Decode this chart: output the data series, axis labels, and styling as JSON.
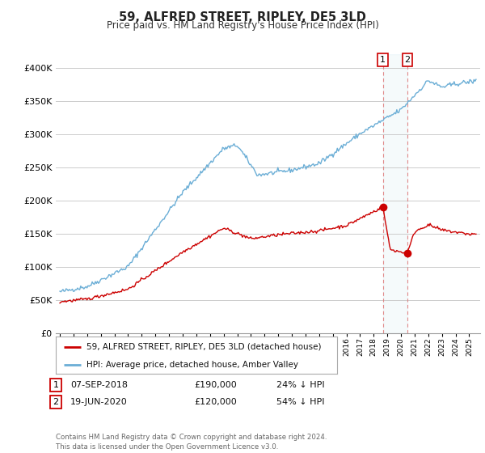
{
  "title": "59, ALFRED STREET, RIPLEY, DE5 3LD",
  "subtitle": "Price paid vs. HM Land Registry's House Price Index (HPI)",
  "footer": "Contains HM Land Registry data © Crown copyright and database right 2024.\nThis data is licensed under the Open Government Licence v3.0.",
  "legend_label_red": "59, ALFRED STREET, RIPLEY, DE5 3LD (detached house)",
  "legend_label_blue": "HPI: Average price, detached house, Amber Valley",
  "table_rows": [
    {
      "num": "1",
      "date": "07-SEP-2018",
      "price": "£190,000",
      "note": "24% ↓ HPI"
    },
    {
      "num": "2",
      "date": "19-JUN-2020",
      "price": "£120,000",
      "note": "54% ↓ HPI"
    }
  ],
  "marker1_x": 2018.67,
  "marker1_y_red": 190000,
  "marker2_x": 2020.46,
  "marker2_y_red": 120000,
  "hpi_color": "#6baed6",
  "price_color": "#cc0000",
  "marker_color": "#cc0000",
  "vline_color": "#e08080",
  "ylim": [
    0,
    420000
  ],
  "xlim_start": 1994.7,
  "xlim_end": 2025.8,
  "yticks": [
    0,
    50000,
    100000,
    150000,
    200000,
    250000,
    300000,
    350000,
    400000
  ],
  "background_color": "#ffffff",
  "grid_color": "#cccccc"
}
